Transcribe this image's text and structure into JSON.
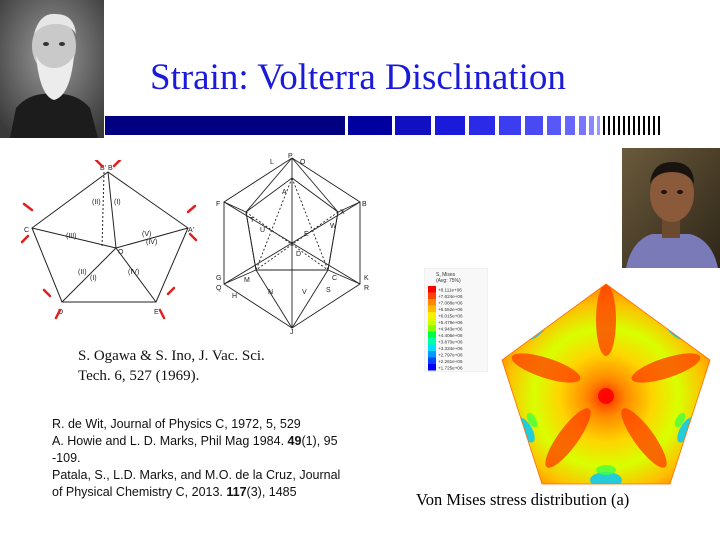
{
  "slide": {
    "title": "Strain: Volterra Disclination",
    "colors": {
      "title": "#1a1adb",
      "bar_dark": "#000080",
      "bar_mid": "#1a1adb",
      "bar_light": "#6666ff",
      "arrow_red": "#e02020"
    },
    "images": {
      "left_portrait": "portrait-photo (older man, bearded, black & white)",
      "right_portrait": "portrait-photo (young man, color)",
      "pentagon_diagram": "pentagonal twin diagram with red arrows",
      "icosahedron_diagram": "icosahedron line drawing",
      "stress_map": "von-mises stress contour pentagon"
    },
    "pentagon_labels": {
      "top": "B' B",
      "left": "C",
      "right": "A'",
      "bottom_left": "D",
      "bottom_right": "E",
      "center": "O",
      "sectors": [
        "(II)",
        "(I)",
        "(III)",
        "(V)",
        "(IV)",
        "(II)",
        "(I)",
        "(IV)"
      ]
    },
    "icosahedron_labels": [
      "L",
      "P",
      "O",
      "F",
      "A",
      "B",
      "T",
      "U",
      "W",
      "X",
      "D",
      "E",
      "G",
      "Q",
      "H",
      "K",
      "R",
      "J",
      "M",
      "N",
      "V",
      "C",
      "S"
    ],
    "legend": {
      "title": "S, Mises",
      "subtitle": "(Avg: 75%)",
      "values": [
        "+8.111e+06",
        "+7.624e+06",
        "+7.088e+06",
        "+6.552e+06",
        "+6.015e+06",
        "+5.479e+06",
        "+4.943e+06",
        "+4.406e+06",
        "+3.870e+06",
        "+3.334e+06",
        "+2.797e+06",
        "+2.261e+06",
        "+1.725e+06"
      ],
      "colors": [
        "#ff0000",
        "#ff4400",
        "#ff8800",
        "#ffbb00",
        "#ffee00",
        "#ccff00",
        "#88ff00",
        "#00ff44",
        "#00ffaa",
        "#00ddff",
        "#0099ff",
        "#0044ff",
        "#0000ff"
      ]
    },
    "citation_ogawa": [
      "S. Ogawa & S. Ino, J. Vac. Sci.",
      "Tech. 6, 527 (1969)."
    ],
    "references": {
      "line1": "R. de Wit,  Journal of Physics C, 1972, 5, 529",
      "line2_pre": "A. Howie and L. D. Marks, Phil Mag 1984. ",
      "line2_bold": "49",
      "line2_post": "(1), 95",
      "line3": "-109.",
      "line4": " Patala, S., L.D. Marks, and M.O. de la Cruz, Journal",
      "line5_pre": "of Physical Chemistry C, 2013. ",
      "line5_bold": "117",
      "line5_post": "(3), 1485"
    },
    "caption": "Von Mises stress distribution (a)"
  }
}
